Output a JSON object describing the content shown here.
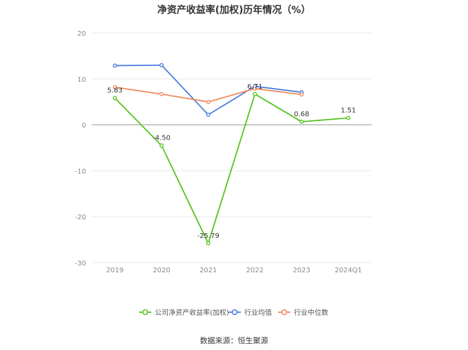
{
  "chart_data": {
    "type": "line",
    "title": "净资产收益率(加权)历年情况（%）",
    "categories": [
      "2019",
      "2020",
      "2021",
      "2022",
      "2023",
      "2024Q1"
    ],
    "ylim": [
      -30,
      20
    ],
    "yticks": [
      20,
      10,
      0,
      -10,
      -20,
      -30
    ],
    "grid": true,
    "legend_position": "bottom",
    "series": [
      {
        "name": "公司净资产收益率(加权)",
        "color": "#52c41a",
        "values": [
          5.83,
          -4.5,
          -25.79,
          6.71,
          0.68,
          1.51
        ],
        "labels": [
          "5.83",
          "-4.50",
          "-25.79",
          "6.71",
          "0.68",
          "1.51"
        ]
      },
      {
        "name": "行业均值",
        "color": "#4a7ee0",
        "values": [
          12.9,
          13.0,
          2.2,
          8.4,
          7.1,
          null
        ]
      },
      {
        "name": "行业中位数",
        "color": "#f08a5d",
        "values": [
          8.2,
          6.7,
          5.0,
          7.9,
          6.6,
          null
        ]
      }
    ]
  },
  "source": "数据来源：恒生聚源"
}
